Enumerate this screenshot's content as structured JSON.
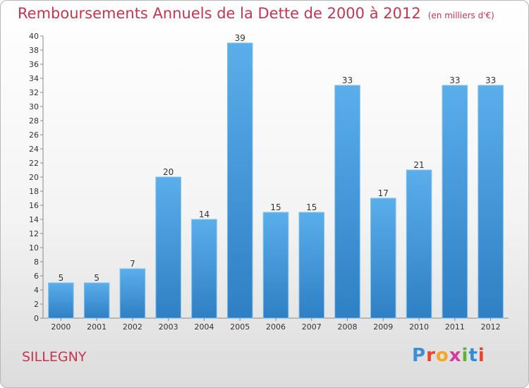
{
  "header": {
    "title": "Remboursements Annuels de la Dette de 2000 à 2012",
    "unit_note": "(en milliers d'€)"
  },
  "footer": {
    "commune": "SILLEGNY",
    "brand": "Proxiti",
    "brand_colors": [
      "#3a8fd6",
      "#e8452c",
      "#f5a623",
      "#d63a9b",
      "#5cb531",
      "#2f8fd6",
      "#e8452c"
    ]
  },
  "colors": {
    "title": "#c6354f",
    "bar_top": "#5aaeea",
    "bar_bottom": "#2f7fc4"
  },
  "chart_data": {
    "type": "bar",
    "categories": [
      "2000",
      "2001",
      "2002",
      "2003",
      "2004",
      "2005",
      "2006",
      "2007",
      "2008",
      "2009",
      "2010",
      "2011",
      "2012"
    ],
    "values": [
      5,
      5,
      7,
      20,
      14,
      39,
      15,
      15,
      33,
      17,
      21,
      33,
      33
    ],
    "title": "Remboursements Annuels de la Dette de 2000 à 2012",
    "xlabel": "",
    "ylabel": "",
    "ylim": [
      0,
      40
    ],
    "ytick_step": 2,
    "grid": false,
    "data_labels": true
  }
}
